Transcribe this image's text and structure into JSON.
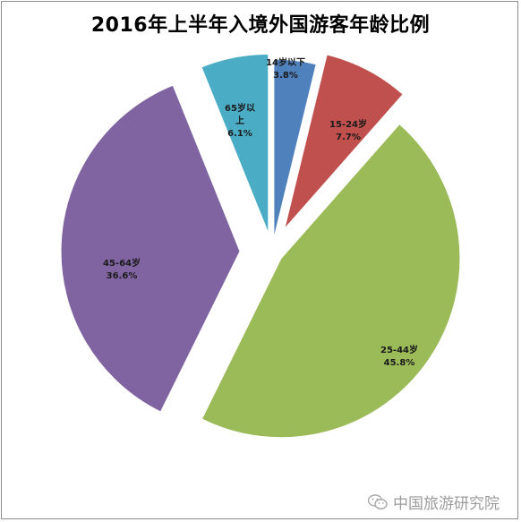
{
  "chart_data": {
    "type": "pie",
    "title": "2016年上半年入境外国游客年龄比例",
    "slices": [
      {
        "name": "14岁以下",
        "value": 3.8,
        "label": "3.8%",
        "color": "#4f81bd"
      },
      {
        "name": "15-24岁",
        "value": 7.7,
        "label": "7.7%",
        "color": "#c0504d"
      },
      {
        "name": "25-44岁",
        "value": 45.8,
        "label": "45.8%",
        "color": "#9bbb59"
      },
      {
        "name": "45-64岁",
        "value": 36.6,
        "label": "36.6%",
        "color": "#8064a2"
      },
      {
        "name": "65岁以上",
        "value": 6.1,
        "label": "6.1%",
        "color": "#4bacc6"
      }
    ],
    "exploded": true,
    "legend": "none",
    "start_angle": "12 o'clock, clockwise"
  },
  "watermark": {
    "text": "中国旅游研究院",
    "icon": "wechat-icon"
  }
}
